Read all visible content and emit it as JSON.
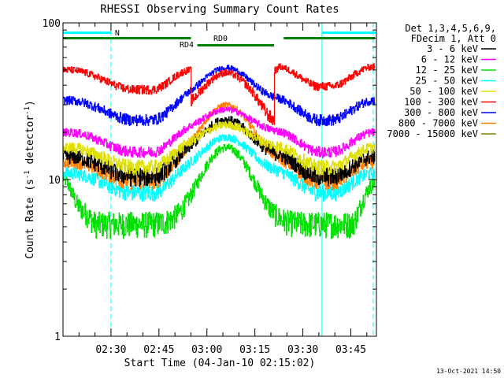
{
  "chart_data": {
    "type": "line",
    "title": "RHESSI Observing Summary Count Rates",
    "xlabel": "Start Time (04-Jan-10 02:15:02)",
    "ylabel_main": "Count Rate (s",
    "ylabel_sup": "-1",
    "ylabel_mid": " detector",
    "ylabel_end": ")",
    "yscale": "log",
    "ylim": [
      1,
      100
    ],
    "xlim_minutes": [
      0,
      98
    ],
    "y_ticks": [
      {
        "value": 1,
        "label": "1"
      },
      {
        "value": 10,
        "label": "10"
      },
      {
        "value": 100,
        "label": "100"
      }
    ],
    "x_ticks": [
      {
        "minute": 15,
        "label": "02:30"
      },
      {
        "minute": 30,
        "label": "02:45"
      },
      {
        "minute": 45,
        "label": "03:00"
      },
      {
        "minute": 60,
        "label": "03:15"
      },
      {
        "minute": 75,
        "label": "03:30"
      },
      {
        "minute": 90,
        "label": "03:45"
      }
    ],
    "legend_header": [
      "Det 1,3,4,5,6,9,",
      "FDecim 1, Att 0"
    ],
    "legend_position": "right",
    "series": [
      {
        "name": "3 - 6 keV",
        "color": "#000000",
        "base": 14,
        "peak": 22,
        "noise": 1.5
      },
      {
        "name": "6 - 12 keV",
        "color": "#ff00ff",
        "base": 20,
        "peak": 25,
        "noise": 1.2
      },
      {
        "name": "12 - 25 keV",
        "color": "#00e000",
        "base": 5.2,
        "peak": 16,
        "noise": 1.0
      },
      {
        "name": "25 - 50 keV",
        "color": "#00ffff",
        "base": 11,
        "peak": 17,
        "noise": 1.0
      },
      {
        "name": "50 - 100 keV",
        "color": "#e0e000",
        "base": 16,
        "peak": 20,
        "noise": 1.3
      },
      {
        "name": "100 - 300 keV",
        "color": "#ff0000",
        "base": 50,
        "peak": 28,
        "noise": 2.5
      },
      {
        "name": "300 - 800 keV",
        "color": "#0000ff",
        "base": 32,
        "peak": 47,
        "noise": 2.0
      },
      {
        "name": "800 - 7000 keV",
        "color": "#ff8000",
        "base": 13,
        "peak": 28,
        "noise": 1.2
      },
      {
        "name": "7000 - 15000 keV",
        "color": "#808000",
        "base": 0,
        "peak": 0,
        "noise": 0
      }
    ],
    "flags": [
      {
        "label": "N",
        "color": "#00ffff",
        "start": 0,
        "end": 15
      },
      {
        "label": "",
        "color": "#00ffff",
        "start": 81,
        "end": 98
      },
      {
        "label": "RD0",
        "color": "#008000",
        "start": 0,
        "end": 98
      },
      {
        "label": "RD4",
        "color": "#008000",
        "start": 40,
        "end": 40
      }
    ],
    "vertical_lines": [
      {
        "minute": 0,
        "style": "solid",
        "color": "#00ffff"
      },
      {
        "minute": 15,
        "style": "dashed",
        "color": "#00ffff"
      },
      {
        "minute": 81,
        "style": "solid",
        "color": "#00ffff"
      },
      {
        "minute": 97,
        "style": "dashed",
        "color": "#00ffff"
      }
    ]
  },
  "footer_date": "13-Oct-2021 14:50"
}
